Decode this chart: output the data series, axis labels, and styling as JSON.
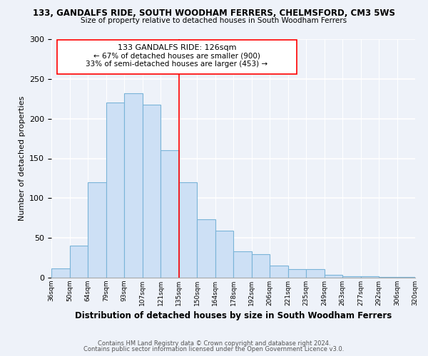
{
  "title": "133, GANDALFS RIDE, SOUTH WOODHAM FERRERS, CHELMSFORD, CM3 5WS",
  "subtitle": "Size of property relative to detached houses in South Woodham Ferrers",
  "xlabel": "Distribution of detached houses by size in South Woodham Ferrers",
  "ylabel": "Number of detached properties",
  "bin_labels": [
    "36sqm",
    "50sqm",
    "64sqm",
    "79sqm",
    "93sqm",
    "107sqm",
    "121sqm",
    "135sqm",
    "150sqm",
    "164sqm",
    "178sqm",
    "192sqm",
    "206sqm",
    "221sqm",
    "235sqm",
    "249sqm",
    "263sqm",
    "277sqm",
    "292sqm",
    "306sqm",
    "320sqm"
  ],
  "bar_values": [
    12,
    40,
    120,
    220,
    232,
    218,
    160,
    120,
    73,
    59,
    33,
    30,
    15,
    11,
    11,
    4,
    2,
    2,
    1,
    1
  ],
  "bar_color": "#cde0f5",
  "bar_edge_color": "#7ab4d8",
  "vline_color": "red",
  "annotation_title": "133 GANDALFS RIDE: 126sqm",
  "annotation_line1": "← 67% of detached houses are smaller (900)",
  "annotation_line2": "33% of semi-detached houses are larger (453) →",
  "annotation_box_color": "white",
  "annotation_box_edge": "red",
  "ylim": [
    0,
    300
  ],
  "yticks": [
    0,
    50,
    100,
    150,
    200,
    250,
    300
  ],
  "footer1": "Contains HM Land Registry data © Crown copyright and database right 2024.",
  "footer2": "Contains public sector information licensed under the Open Government Licence v3.0.",
  "bg_color": "#eef2f9",
  "grid_color": "white"
}
